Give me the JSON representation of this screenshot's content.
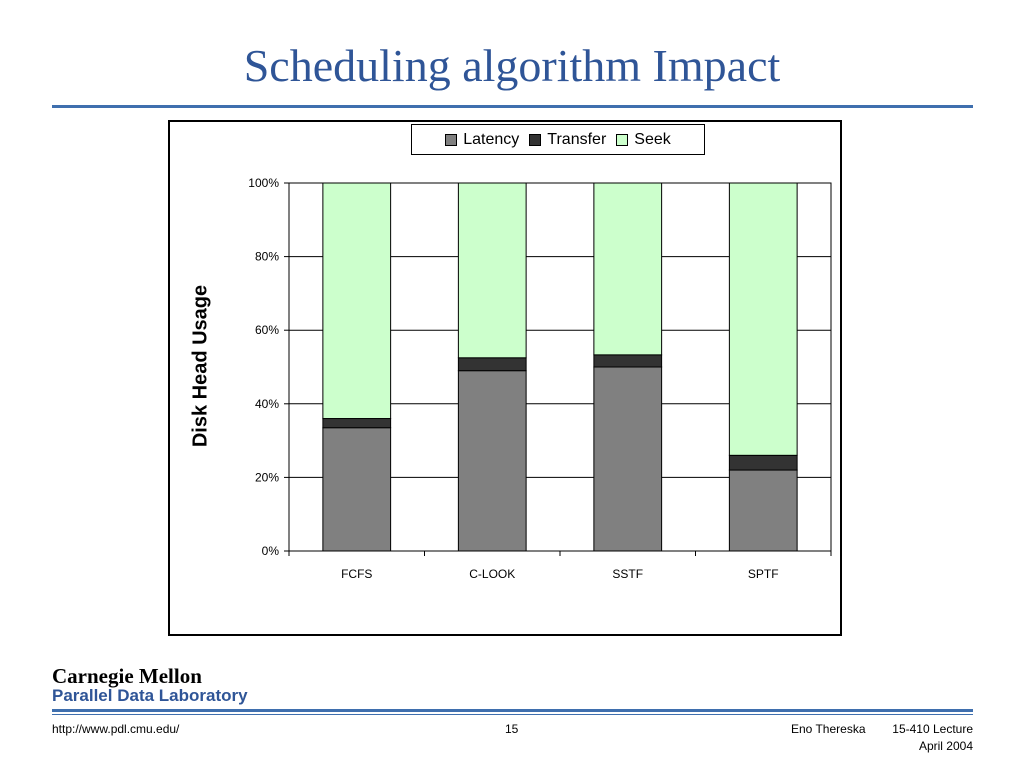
{
  "slide": {
    "title": "Scheduling algorithm Impact"
  },
  "chart_data": {
    "type": "bar",
    "stacked": true,
    "ylabel": "Disk Head Usage",
    "xlabel": "",
    "ylim": [
      0,
      100
    ],
    "yticks": [
      "0%",
      "20%",
      "40%",
      "60%",
      "80%",
      "100%"
    ],
    "categories": [
      "FCFS",
      "C-LOOK",
      "SSTF",
      "SPTF"
    ],
    "series": [
      {
        "name": "Latency",
        "color": "#808080",
        "values": [
          33.5,
          49,
          50,
          22
        ]
      },
      {
        "name": "Transfer",
        "color": "#333333",
        "values": [
          2.5,
          3.5,
          3.3,
          4
        ]
      },
      {
        "name": "Seek",
        "color": "#ccffcc",
        "values": [
          64,
          47.5,
          46.7,
          74
        ]
      }
    ],
    "grid": true,
    "legend": "top"
  },
  "footer": {
    "logo_line1": "Carnegie Mellon",
    "logo_line2": "Parallel Data Laboratory",
    "url": "http://www.pdl.cmu.edu/",
    "page": "15",
    "author": "Eno Thereska",
    "lecture": "15-410 Lecture",
    "date": "April 2004"
  }
}
